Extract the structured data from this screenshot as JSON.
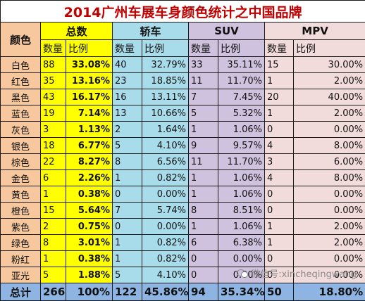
{
  "title": "2014广州车展车身颜色统计之中国品牌",
  "headers": {
    "color": "颜色",
    "groups": [
      "总数",
      "轿车",
      "SUV",
      "MPV"
    ],
    "count": "数量",
    "ratio": "比例"
  },
  "rows": [
    {
      "color": "白色",
      "total": {
        "n": "88",
        "p": "33.08%"
      },
      "sedan": {
        "n": "40",
        "p": "32.79%"
      },
      "suv": {
        "n": "33",
        "p": "35.11%"
      },
      "mpv": {
        "n": "15",
        "p": "30.00%"
      }
    },
    {
      "color": "红色",
      "total": {
        "n": "35",
        "p": "13.16%"
      },
      "sedan": {
        "n": "23",
        "p": "18.85%"
      },
      "suv": {
        "n": "11",
        "p": "11.70%"
      },
      "mpv": {
        "n": "1",
        "p": "2.00%"
      }
    },
    {
      "color": "黑色",
      "total": {
        "n": "43",
        "p": "16.17%"
      },
      "sedan": {
        "n": "16",
        "p": "13.11%"
      },
      "suv": {
        "n": "7",
        "p": "7.45%"
      },
      "mpv": {
        "n": "20",
        "p": "40.00%"
      }
    },
    {
      "color": "蓝色",
      "total": {
        "n": "19",
        "p": "7.14%"
      },
      "sedan": {
        "n": "13",
        "p": "10.66%"
      },
      "suv": {
        "n": "5",
        "p": "5.32%"
      },
      "mpv": {
        "n": "1",
        "p": "2.00%"
      }
    },
    {
      "color": "灰色",
      "total": {
        "n": "3",
        "p": "1.13%"
      },
      "sedan": {
        "n": "2",
        "p": "1.64%"
      },
      "suv": {
        "n": "1",
        "p": "1.06%"
      },
      "mpv": {
        "n": "0",
        "p": "0.00%"
      }
    },
    {
      "color": "银色",
      "total": {
        "n": "18",
        "p": "6.77%"
      },
      "sedan": {
        "n": "5",
        "p": "4.10%"
      },
      "suv": {
        "n": "9",
        "p": "9.57%"
      },
      "mpv": {
        "n": "4",
        "p": "8.00%"
      }
    },
    {
      "color": "棕色",
      "total": {
        "n": "22",
        "p": "8.27%"
      },
      "sedan": {
        "n": "8",
        "p": "6.56%"
      },
      "suv": {
        "n": "11",
        "p": "11.70%"
      },
      "mpv": {
        "n": "3",
        "p": "6.00%"
      }
    },
    {
      "color": "金色",
      "total": {
        "n": "6",
        "p": "2.26%"
      },
      "sedan": {
        "n": "1",
        "p": "0.82%"
      },
      "suv": {
        "n": "1",
        "p": "1.06%"
      },
      "mpv": {
        "n": "4",
        "p": "8.00%"
      }
    },
    {
      "color": "黄色",
      "total": {
        "n": "1",
        "p": "0.38%"
      },
      "sedan": {
        "n": "0",
        "p": "0.00%"
      },
      "suv": {
        "n": "1",
        "p": "1.06%"
      },
      "mpv": {
        "n": "0",
        "p": "0.00%"
      }
    },
    {
      "color": "橙色",
      "total": {
        "n": "15",
        "p": "5.64%"
      },
      "sedan": {
        "n": "7",
        "p": "5.74%"
      },
      "suv": {
        "n": "8",
        "p": "8.51%"
      },
      "mpv": {
        "n": "0",
        "p": "0.00%"
      }
    },
    {
      "color": "紫色",
      "total": {
        "n": "2",
        "p": "0.75%"
      },
      "sedan": {
        "n": "0",
        "p": "0.00%"
      },
      "suv": {
        "n": "1",
        "p": "1.06%"
      },
      "mpv": {
        "n": "1",
        "p": "2.00%"
      }
    },
    {
      "color": "绿色",
      "total": {
        "n": "8",
        "p": "3.01%"
      },
      "sedan": {
        "n": "1",
        "p": "0.82%"
      },
      "suv": {
        "n": "6",
        "p": "6.38%"
      },
      "mpv": {
        "n": "1",
        "p": "2.00%"
      }
    },
    {
      "color": "粉红",
      "total": {
        "n": "1",
        "p": "0.38%"
      },
      "sedan": {
        "n": "1",
        "p": "0.82%"
      },
      "suv": {
        "n": "0",
        "p": "0.00%"
      },
      "mpv": {
        "n": "0",
        "p": "0.00%"
      }
    },
    {
      "color": "亚光",
      "total": {
        "n": "5",
        "p": "1.88%"
      },
      "sedan": {
        "n": "5",
        "p": "4.10%"
      },
      "suv": {
        "n": "0",
        "p": "0.00%"
      },
      "mpv": {
        "n": "0",
        "p": "0.00%"
      }
    }
  ],
  "footer": {
    "label": "总计",
    "total": {
      "n": "266",
      "p": "100%"
    },
    "sedan": {
      "n": "122",
      "p": "45.86%"
    },
    "suv": {
      "n": "94",
      "p": "35.34%"
    },
    "mpv": {
      "n": "50",
      "p": "18.80%"
    }
  },
  "watermark": {
    "icon": "wechat-icon",
    "text": "微信号:xincheqingwang"
  },
  "colors": {
    "title_text": "#c00000",
    "color_col": "#f7c89d",
    "total_col": "#ffff00",
    "sedan_col": "#a9dceb",
    "suv_col": "#cfc2de",
    "mpv_col": "#f2dcdb",
    "footer": "#8db4e3"
  }
}
